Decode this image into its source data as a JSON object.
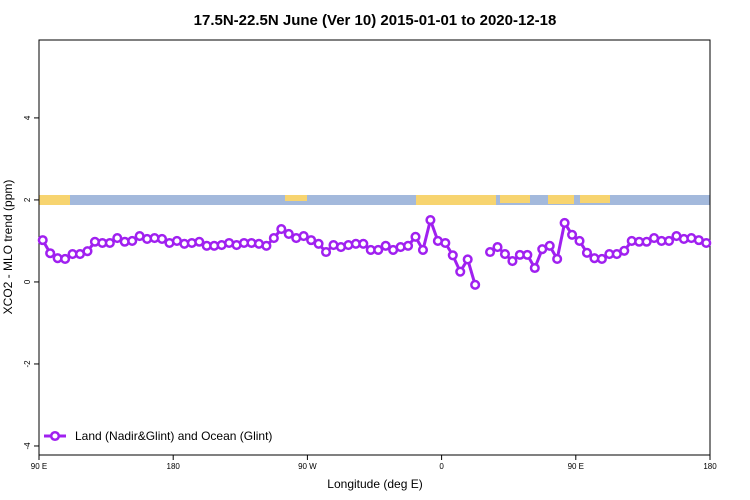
{
  "chart_data": {
    "type": "line",
    "title": "17.5N-22.5N June (Ver 10)   2015-01-01 to 2020-12-18",
    "x_label": "Longitude (deg E)",
    "y_label": "XCO2 - MLO trend (ppm)",
    "x": [
      92.5,
      97.5,
      102.5,
      107.5,
      112.5,
      117.5,
      122.5,
      127.5,
      132.5,
      137.5,
      142.5,
      147.5,
      152.5,
      157.5,
      162.5,
      167.5,
      172.5,
      177.5,
      182.5,
      187.5,
      192.5,
      197.5,
      202.5,
      207.5,
      212.5,
      217.5,
      222.5,
      227.5,
      232.5,
      237.5,
      242.5,
      247.5,
      252.5,
      257.5,
      262.5,
      267.5,
      272.5,
      277.5,
      282.5,
      287.5,
      292.5,
      297.5,
      302.5,
      307.5,
      312.5,
      317.5,
      322.5,
      327.5,
      332.5,
      337.5,
      342.5,
      347.5,
      352.5,
      357.5,
      362.5,
      367.5,
      372.5,
      377.5,
      382.5,
      387.5,
      392.5,
      397.5,
      402.5,
      407.5,
      412.5,
      417.5,
      422.5,
      427.5,
      432.5,
      437.5,
      442.5,
      447.5,
      452.5,
      457.5,
      462.5,
      467.5,
      472.5,
      477.5,
      482.5,
      487.5,
      492.5,
      497.5,
      502.5,
      507.5,
      512.5,
      517.5,
      522.5,
      527.5,
      532.5,
      537.5
    ],
    "series": [
      {
        "name": "Land (Nadir&Glint) and Ocean (Glint)",
        "color": "#a020f0",
        "values": [
          1.02,
          0.7,
          0.58,
          0.56,
          0.68,
          0.68,
          0.75,
          0.98,
          0.95,
          0.95,
          1.07,
          0.98,
          1.0,
          1.12,
          1.05,
          1.07,
          1.05,
          0.95,
          1.0,
          0.93,
          0.95,
          0.98,
          0.88,
          0.88,
          0.9,
          0.95,
          0.9,
          0.95,
          0.95,
          0.93,
          0.88,
          1.07,
          1.29,
          1.17,
          1.07,
          1.12,
          1.02,
          0.93,
          0.73,
          0.9,
          0.85,
          0.9,
          0.93,
          0.93,
          0.78,
          0.78,
          0.88,
          0.78,
          0.85,
          0.88,
          1.1,
          0.78,
          1.51,
          1.0,
          0.95,
          0.65,
          0.25,
          0.55,
          -0.07,
          null,
          0.73,
          0.85,
          0.68,
          0.51,
          0.66,
          0.66,
          0.34,
          0.8,
          0.88,
          0.56,
          1.44,
          1.15,
          1.0,
          0.71,
          0.58,
          0.56,
          0.68,
          0.68,
          0.76,
          1.0,
          0.98,
          0.98,
          1.07,
          1.0,
          1.0,
          1.12,
          1.05,
          1.07,
          1.02,
          0.95
        ]
      }
    ],
    "xlim": [
      90,
      540
    ],
    "xticks": [
      {
        "value": 90,
        "label": "90 E"
      },
      180,
      {
        "value": 270,
        "label": "90 W"
      },
      {
        "value": 360,
        "label": "0"
      },
      {
        "value": 450,
        "label": "90 E"
      },
      {
        "value": 540,
        "label": "180"
      }
    ],
    "ylim": [
      -4.22,
      5.9
    ],
    "yticks": [
      -4,
      -2,
      0,
      2,
      4
    ],
    "legend": "bottom-left"
  }
}
